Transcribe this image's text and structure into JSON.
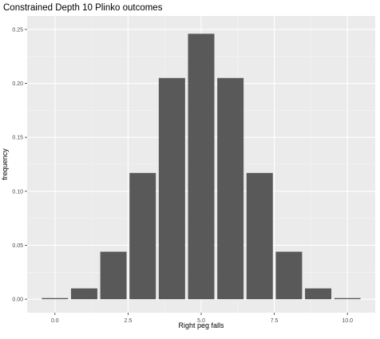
{
  "chart_data": {
    "type": "bar",
    "title": "Constrained Depth 10 Plinko outcomes",
    "xlabel": "Right peg falls",
    "ylabel": "frequency",
    "x": [
      0,
      1,
      2,
      3,
      4,
      5,
      6,
      7,
      8,
      9,
      10
    ],
    "values": [
      0.001,
      0.01,
      0.044,
      0.117,
      0.205,
      0.246,
      0.205,
      0.117,
      0.044,
      0.01,
      0.001
    ],
    "xlim": [
      -0.95,
      10.95
    ],
    "ylim": [
      -0.0125,
      0.2625
    ],
    "x_ticks": [
      0,
      2.5,
      5,
      7.5,
      10
    ],
    "x_tick_labels": [
      "0.0",
      "2.5",
      "5.0",
      "7.5",
      "10.0"
    ],
    "y_ticks": [
      0,
      0.05,
      0.1,
      0.15,
      0.2,
      0.25
    ],
    "y_tick_labels": [
      "0.00",
      "0.05",
      "0.10",
      "0.15",
      "0.20",
      "0.25"
    ],
    "grid": true,
    "colors": {
      "bar": "#595959",
      "panel": "#ebebeb",
      "grid_major": "#ffffff",
      "grid_minor": "#f5f5f5",
      "text": "#4d4d4d",
      "title": "#000000"
    }
  }
}
